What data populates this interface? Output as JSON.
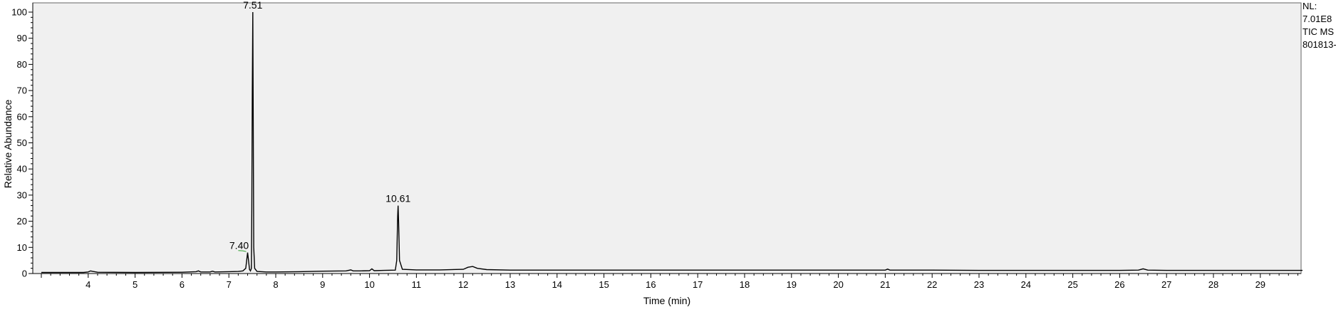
{
  "chart_data": {
    "type": "line",
    "xlabel": "Time (min)",
    "ylabel": "Relative Abundance",
    "xlim": [
      3.0,
      29.9
    ],
    "ylim": [
      0,
      102
    ],
    "x_ticks": [
      "4",
      "5",
      "6",
      "7",
      "8",
      "9",
      "10",
      "11",
      "12",
      "13",
      "14",
      "15",
      "16",
      "17",
      "18",
      "19",
      "20",
      "21",
      "22",
      "23",
      "24",
      "25",
      "26",
      "27",
      "28",
      "29"
    ],
    "y_ticks": [
      "0",
      "10",
      "20",
      "30",
      "40",
      "50",
      "60",
      "70",
      "80",
      "90",
      "100"
    ],
    "side_info": [
      "NL:",
      "7.01E8",
      "TIC  MS",
      "801813-"
    ],
    "peak_labels": [
      {
        "label": "7.51",
        "x": 7.51,
        "y": 100
      },
      {
        "label": "10.61",
        "x": 10.61,
        "y": 26
      },
      {
        "label": "7.40",
        "x": 7.4,
        "y": 8
      }
    ],
    "series": [
      {
        "color": "#000000",
        "points": [
          [
            3.0,
            0.4
          ],
          [
            3.9,
            0.4
          ],
          [
            4.0,
            0.6
          ],
          [
            4.05,
            1.0
          ],
          [
            4.1,
            0.8
          ],
          [
            4.2,
            0.5
          ],
          [
            5.0,
            0.4
          ],
          [
            6.0,
            0.5
          ],
          [
            6.3,
            0.7
          ],
          [
            6.35,
            1.0
          ],
          [
            6.4,
            0.6
          ],
          [
            6.6,
            0.6
          ],
          [
            6.65,
            0.9
          ],
          [
            6.7,
            0.6
          ],
          [
            7.0,
            0.7
          ],
          [
            7.2,
            0.8
          ],
          [
            7.3,
            1.0
          ],
          [
            7.36,
            2.0
          ],
          [
            7.38,
            5.0
          ],
          [
            7.4,
            8.0
          ],
          [
            7.42,
            5.0
          ],
          [
            7.44,
            1.5
          ],
          [
            7.46,
            1.0
          ],
          [
            7.48,
            2.0
          ],
          [
            7.49,
            25.0
          ],
          [
            7.5,
            70.0
          ],
          [
            7.51,
            100.0
          ],
          [
            7.52,
            58.0
          ],
          [
            7.53,
            10.0
          ],
          [
            7.55,
            2.0
          ],
          [
            7.6,
            0.8
          ],
          [
            7.8,
            0.6
          ],
          [
            8.0,
            0.6
          ],
          [
            8.5,
            0.7
          ],
          [
            9.0,
            0.9
          ],
          [
            9.5,
            1.0
          ],
          [
            9.6,
            1.4
          ],
          [
            9.65,
            1.0
          ],
          [
            9.8,
            1.0
          ],
          [
            10.0,
            1.1
          ],
          [
            10.05,
            1.8
          ],
          [
            10.1,
            1.1
          ],
          [
            10.3,
            1.2
          ],
          [
            10.55,
            1.3
          ],
          [
            10.58,
            5.0
          ],
          [
            10.6,
            22.0
          ],
          [
            10.61,
            26.0
          ],
          [
            10.62,
            20.0
          ],
          [
            10.64,
            5.0
          ],
          [
            10.7,
            1.6
          ],
          [
            11.0,
            1.4
          ],
          [
            11.5,
            1.4
          ],
          [
            12.0,
            1.6
          ],
          [
            12.1,
            2.4
          ],
          [
            12.2,
            2.7
          ],
          [
            12.3,
            2.0
          ],
          [
            12.5,
            1.5
          ],
          [
            13.0,
            1.3
          ],
          [
            14.0,
            1.3
          ],
          [
            15.0,
            1.3
          ],
          [
            16.0,
            1.3
          ],
          [
            17.0,
            1.3
          ],
          [
            18.0,
            1.3
          ],
          [
            19.0,
            1.3
          ],
          [
            20.0,
            1.3
          ],
          [
            21.0,
            1.3
          ],
          [
            21.05,
            1.7
          ],
          [
            21.1,
            1.3
          ],
          [
            22.0,
            1.3
          ],
          [
            23.0,
            1.2
          ],
          [
            24.0,
            1.2
          ],
          [
            25.0,
            1.2
          ],
          [
            26.0,
            1.2
          ],
          [
            26.4,
            1.3
          ],
          [
            26.5,
            1.8
          ],
          [
            26.6,
            1.3
          ],
          [
            27.0,
            1.2
          ],
          [
            28.0,
            1.2
          ],
          [
            29.0,
            1.2
          ],
          [
            29.9,
            1.2
          ]
        ]
      },
      {
        "color": "#2e9e2e",
        "points": [
          [
            7.2,
            8.8
          ],
          [
            7.3,
            8.7
          ],
          [
            7.37,
            8.4
          ]
        ]
      }
    ]
  }
}
